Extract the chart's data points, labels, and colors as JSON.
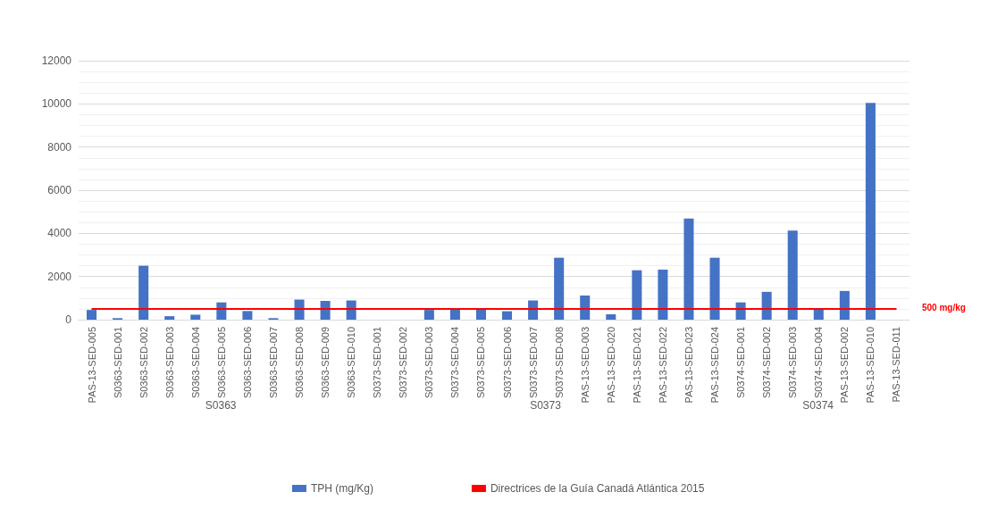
{
  "chart_data": {
    "type": "bar",
    "categories": [
      "PAS-13-SED-005",
      "S0363-SED-001",
      "S0363-SED-002",
      "S0363-SED-003",
      "S0363-SED-004",
      "S0363-SED-005",
      "S0363-SED-006",
      "S0363-SED-007",
      "S0363-SED-008",
      "S0363-SED-009",
      "S0363-SED-010",
      "S0373-SED-001",
      "S0373-SED-002",
      "S0373-SED-003",
      "S0373-SED-004",
      "S0373-SED-005",
      "S0373-SED-006",
      "S0373-SED-007",
      "S0373-SED-008",
      "PAS-13-SED-003",
      "PAS-13-SED-020",
      "PAS-13-SED-021",
      "PAS-13-SED-022",
      "PAS-13-SED-023",
      "PAS-13-SED-024",
      "S0374-SED-001",
      "S0374-SED-002",
      "S0374-SED-003",
      "S0374-SED-004",
      "PAS-13-SED-002",
      "PAS-13-SED-010",
      "PAS-13-SED-011"
    ],
    "series": [
      {
        "name": "TPH (mg/Kg)",
        "color": "#4472c4",
        "values": [
          450,
          70,
          2500,
          160,
          230,
          800,
          400,
          70,
          930,
          870,
          890,
          null,
          null,
          450,
          500,
          500,
          390,
          890,
          2870,
          1120,
          250,
          2290,
          2320,
          4690,
          2870,
          800,
          1290,
          4130,
          470,
          1330,
          10050,
          null
        ]
      },
      {
        "name": "Directrices de la Guía Canadá Atlántica 2015",
        "type": "line",
        "color": "#ff0000",
        "marker": "none",
        "values": [
          500,
          500,
          500,
          500,
          500,
          500,
          500,
          500,
          500,
          500,
          500,
          500,
          500,
          500,
          500,
          500,
          500,
          500,
          500,
          500,
          500,
          500,
          500,
          500,
          500,
          500,
          500,
          500,
          500,
          500,
          500,
          500
        ]
      }
    ],
    "annotations": [
      "500 mg/kg",
      "S0363",
      "S0373",
      "S0374"
    ],
    "ylim": [
      0,
      12000
    ],
    "yticks": [
      0,
      2000,
      4000,
      6000,
      8000,
      10000,
      12000
    ],
    "grid": "y",
    "legend": "bottom"
  }
}
